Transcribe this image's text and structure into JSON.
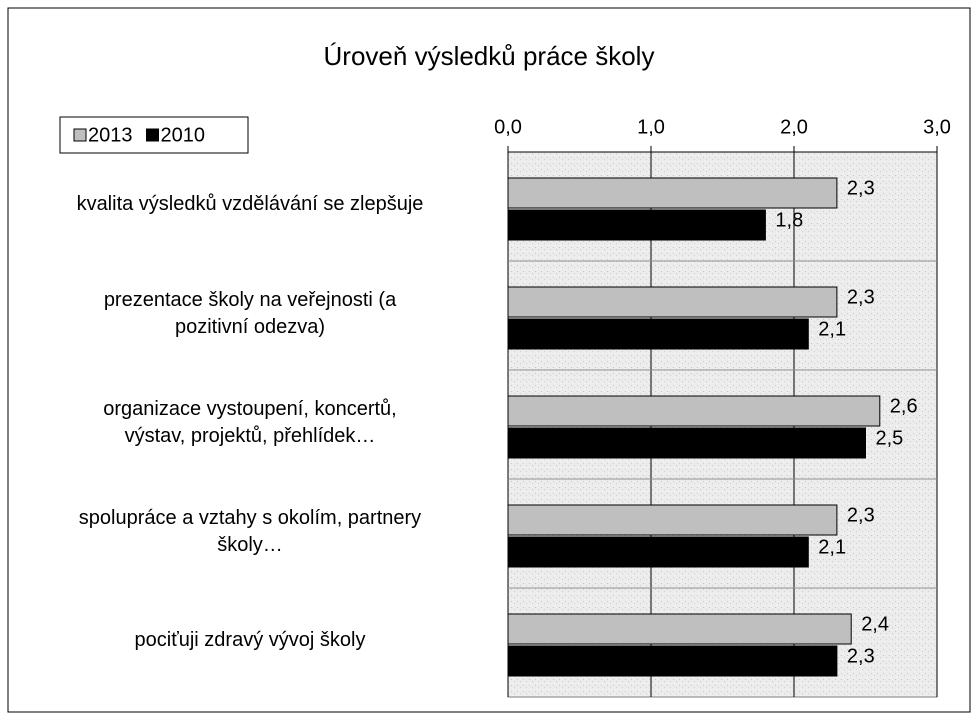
{
  "chart_data": {
    "type": "hbar",
    "title": "Úroveň výsledků práce školy",
    "categories": [
      "kvalita výsledků vzdělávání se zlepšuje",
      "prezentace školy na veřejnosti (a\npozitivní odezva)",
      "organizace vystoupení, koncertů,\nvýstav, projektů, přehlídek…",
      "spolupráce a vztahy s okolím, partnery\nškoly…",
      "pociťuji zdravý vývoj školy"
    ],
    "series": [
      {
        "name": "2013",
        "color": "#bfbfbf",
        "values": [
          2.3,
          2.3,
          2.6,
          2.3,
          2.4
        ],
        "value_labels": [
          "2,3",
          "2,3",
          "2,6",
          "2,3",
          "2,4"
        ]
      },
      {
        "name": "2010",
        "color": "#000000",
        "values": [
          1.8,
          2.1,
          2.5,
          2.1,
          2.3
        ],
        "value_labels": [
          "1,8",
          "2,1",
          "2,5",
          "2,1",
          "2,3"
        ]
      }
    ],
    "xlim": [
      0,
      3
    ],
    "xticks": [
      {
        "value": 0,
        "label": "0,0"
      },
      {
        "value": 1,
        "label": "1,0"
      },
      {
        "value": 2,
        "label": "2,0"
      },
      {
        "value": 3,
        "label": "3,0"
      }
    ],
    "grid": true,
    "legend": "top-left"
  }
}
